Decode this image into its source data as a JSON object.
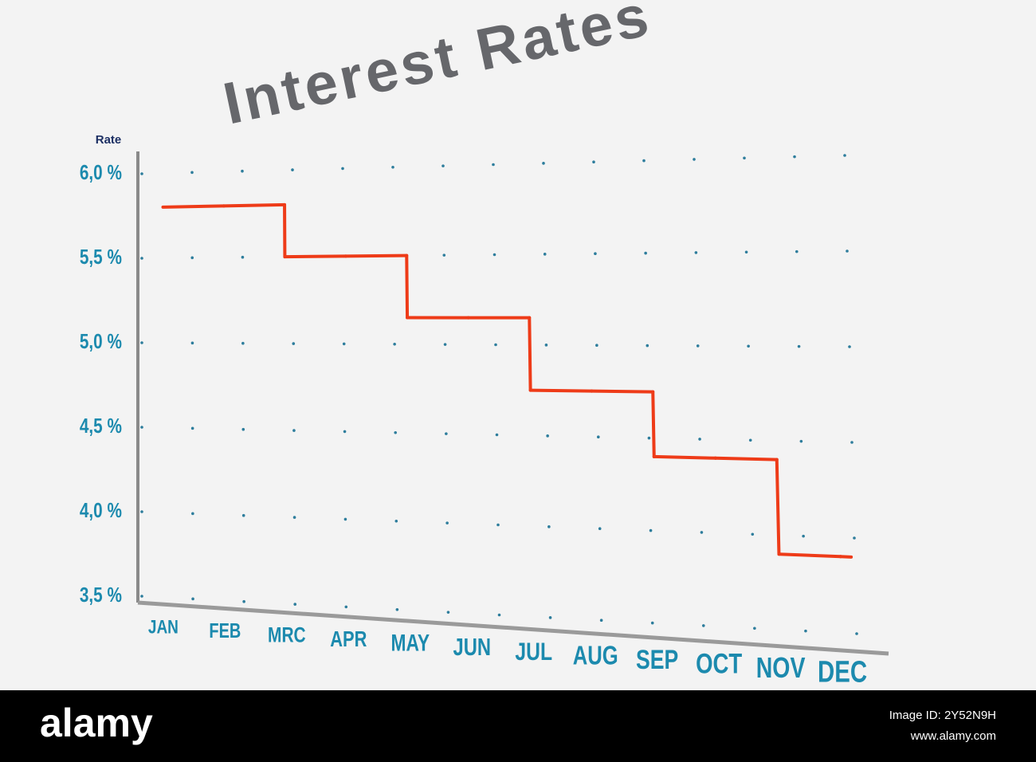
{
  "chart_data": {
    "type": "step",
    "title": "Interest Rates",
    "y_label": "Rate",
    "categories": [
      "JAN",
      "FEB",
      "MRC",
      "APR",
      "MAY",
      "JUN",
      "JUL",
      "AUG",
      "SEP",
      "OCT",
      "NOV",
      "DEC"
    ],
    "values": [
      5.8,
      5.8,
      5.5,
      5.5,
      5.15,
      5.15,
      4.75,
      4.75,
      4.4,
      4.4,
      3.9,
      3.9
    ],
    "color": "#ee3b18",
    "ylim": [
      3.5,
      6.0
    ],
    "yticks": [
      {
        "value": 3.5,
        "label": "3,5 %"
      },
      {
        "value": 4.0,
        "label": "4,0 %"
      },
      {
        "value": 4.5,
        "label": "4,5 %"
      },
      {
        "value": 5.0,
        "label": "5,0 %"
      },
      {
        "value": 5.5,
        "label": "5,5 %"
      },
      {
        "value": 6.0,
        "label": "6,0 %"
      }
    ],
    "grid": true
  },
  "watermark": {
    "logo": "alamy",
    "image_id": "Image ID: 2Y52N9H",
    "url": "www.alamy.com"
  }
}
